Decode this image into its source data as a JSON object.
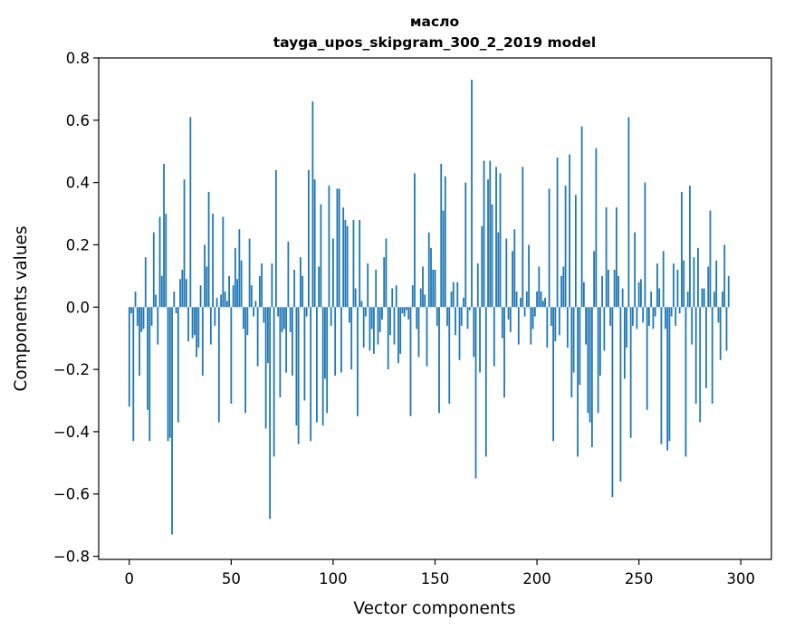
{
  "chart_data": {
    "type": "bar",
    "title_line1": "масло",
    "title_line2": "tayga_upos_skipgram_300_2_2019 model",
    "xlabel": "Vector components",
    "ylabel": "Components values",
    "xlim": [
      -15,
      315
    ],
    "ylim": [
      -0.81,
      0.8
    ],
    "xticks": [
      0,
      50,
      100,
      150,
      200,
      250,
      300
    ],
    "yticks": [
      -0.8,
      -0.6,
      -0.4,
      -0.2,
      0.0,
      0.2,
      0.4,
      0.6,
      0.8
    ],
    "ytick_labels": [
      "−0.8",
      "−0.6",
      "−0.4",
      "−0.2",
      "0.0",
      "0.2",
      "0.4",
      "0.6",
      "0.8"
    ],
    "bar_color": "#1f77b4",
    "values": [
      -0.32,
      -0.02,
      -0.43,
      0.05,
      -0.06,
      -0.22,
      -0.08,
      -0.07,
      0.16,
      -0.33,
      -0.43,
      -0.06,
      0.24,
      0.04,
      -0.12,
      0.29,
      0.1,
      0.46,
      0.3,
      -0.43,
      -0.42,
      -0.73,
      0.05,
      -0.02,
      -0.37,
      0.09,
      0.12,
      0.41,
      0.09,
      -0.11,
      0.61,
      -0.1,
      -0.09,
      -0.16,
      -0.13,
      0.07,
      -0.22,
      0.2,
      0.13,
      0.37,
      -0.12,
      0.3,
      -0.06,
      0.03,
      -0.37,
      0.04,
      0.29,
      0.05,
      0.02,
      0.1,
      -0.31,
      0.07,
      0.19,
      0.09,
      0.25,
      0.15,
      -0.07,
      -0.34,
      -0.09,
      0.22,
      0.07,
      -0.03,
      0.02,
      -0.19,
      0.1,
      0.14,
      -0.05,
      -0.39,
      -0.18,
      -0.68,
      0.14,
      -0.48,
      0.44,
      -0.03,
      -0.29,
      -0.08,
      -0.07,
      -0.21,
      0.21,
      -0.08,
      -0.22,
      0.12,
      -0.38,
      -0.44,
      0.16,
      0.1,
      -0.3,
      -0.03,
      0.44,
      -0.43,
      0.66,
      0.41,
      -0.37,
      0.13,
      0.33,
      -0.38,
      -0.23,
      -0.34,
      0.39,
      -0.06,
      0.22,
      -0.22,
      0.38,
      0.38,
      -0.21,
      0.32,
      0.28,
      0.26,
      -0.05,
      -0.2,
      0.28,
      0.06,
      -0.35,
      0.28,
      0.02,
      -0.13,
      -0.03,
      0.14,
      -0.14,
      -0.07,
      -0.15,
      0.12,
      -0.12,
      -0.08,
      -0.04,
      0.16,
      0.22,
      -0.2,
      -0.09,
      0.06,
      -0.12,
      0.07,
      -0.18,
      -0.15,
      -0.02,
      -0.03,
      -0.01,
      -0.04,
      -0.35,
      0.07,
      0.43,
      -0.07,
      -0.16,
      0.06,
      0.13,
      0.04,
      -0.19,
      0.24,
      0.19,
      0.12,
      0.12,
      -0.06,
      -0.34,
      0.46,
      0.31,
      0.42,
      -0.06,
      -0.31,
      0.05,
      0.08,
      -0.09,
      0.08,
      -0.17,
      -0.06,
      0.03,
      0.4,
      -0.07,
      -0.01,
      0.73,
      -0.16,
      -0.55,
      0.14,
      -0.21,
      0.26,
      0.47,
      -0.48,
      0.41,
      0.47,
      0.33,
      -0.19,
      0.45,
      0.24,
      0.43,
      -0.1,
      -0.29,
      0.22,
      -0.04,
      -0.08,
      0.18,
      0.25,
      0.05,
      -0.12,
      0.03,
      0.45,
      -0.03,
      0.05,
      0.2,
      -0.12,
      -0.07,
      -0.03,
      0.05,
      0.13,
      0.05,
      0.02,
      0.03,
      -0.13,
      0.38,
      -0.06,
      -0.43,
      -0.11,
      0.48,
      -0.09,
      0.1,
      0.13,
      0.39,
      -0.13,
      0.49,
      -0.29,
      -0.21,
      0.36,
      -0.48,
      -0.25,
      0.58,
      0.08,
      -0.12,
      -0.34,
      -0.37,
      -0.45,
      0.18,
      0.51,
      -0.34,
      -0.22,
      0.1,
      -0.14,
      0.32,
      0.12,
      -0.06,
      -0.61,
      0.12,
      0.32,
      0.1,
      -0.56,
      0.06,
      -0.23,
      -0.13,
      0.61,
      -0.42,
      -0.06,
      0.24,
      -0.07,
      0.08,
      0.09,
      -0.05,
      0.4,
      -0.33,
      -0.06,
      0.05,
      -0.07,
      -0.03,
      0.14,
      0.06,
      -0.44,
      0.18,
      -0.07,
      -0.46,
      -0.43,
      -0.03,
      0.14,
      -0.06,
      0.12,
      -0.02,
      0.37,
      0.15,
      -0.48,
      0.05,
      0.39,
      -0.12,
      0.16,
      -0.31,
      0.19,
      -0.37,
      0.06,
      0.06,
      -0.26,
      0.13,
      0.31,
      -0.31,
      0.05,
      0.15,
      -0.05,
      -0.17,
      0.05,
      0.2,
      -0.14,
      0.1
    ]
  }
}
